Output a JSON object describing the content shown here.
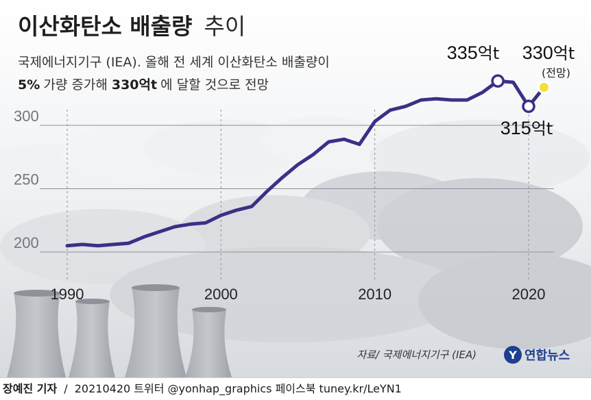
{
  "title": {
    "bold": "이산화탄소 배출량",
    "light": "추이"
  },
  "subtitle": {
    "line1": "국제에너지기구 (IEA). 올해 전 세계 이산화탄소 배출량이",
    "line2_parts": [
      {
        "text": "5%",
        "bold": true
      },
      {
        "text": "가량 증가해 ",
        "bold": false
      },
      {
        "text": "330억t",
        "bold": true
      },
      {
        "text": "에 달할 것으로 전망",
        "bold": false
      }
    ]
  },
  "chart_data": {
    "type": "line",
    "x": [
      1990,
      1991,
      1992,
      1993,
      1994,
      1995,
      1996,
      1997,
      1998,
      1999,
      2000,
      2001,
      2002,
      2003,
      2004,
      2005,
      2006,
      2007,
      2008,
      2009,
      2010,
      2011,
      2012,
      2013,
      2014,
      2015,
      2016,
      2017,
      2018,
      2019,
      2020
    ],
    "series": [
      {
        "values": [
          205,
          206,
          205,
          206,
          207,
          212,
          216,
          220,
          222,
          223,
          229,
          233,
          236,
          248,
          259,
          269,
          277,
          287,
          289,
          285,
          303,
          312,
          315,
          320,
          321,
          320,
          320,
          326,
          335,
          334,
          315
        ]
      }
    ],
    "projection": {
      "x": 2021,
      "value": 330,
      "color": "#f2df3b"
    },
    "line_color": "#3b2f86",
    "yticks": [
      200,
      250,
      300
    ],
    "xticks": [
      1990,
      2000,
      2010,
      2020
    ],
    "xlim": [
      1990,
      2021
    ],
    "ylim": [
      185,
      350
    ],
    "grid": true,
    "annotations": [
      {
        "x": 2018,
        "value": 335,
        "label": "335",
        "unit": "억t",
        "note": ""
      },
      {
        "x": 2020,
        "value": 315,
        "label": "315",
        "unit": "억t",
        "note": ""
      },
      {
        "x": 2021,
        "value": 330,
        "label": "330",
        "unit": "억t",
        "note": "(전망)"
      }
    ]
  },
  "source": "자료/ 국제에너지기구 (IEA)",
  "logo": {
    "text": "연합뉴스",
    "mark": "Y"
  },
  "footer": {
    "reporter": "장예진 기자",
    "separator": "/",
    "date": "20210420",
    "twitter_label": "트위터",
    "twitter": "@yonhap_graphics",
    "facebook_label": "페이스북",
    "facebook": "tuney.kr/LeYN1"
  }
}
